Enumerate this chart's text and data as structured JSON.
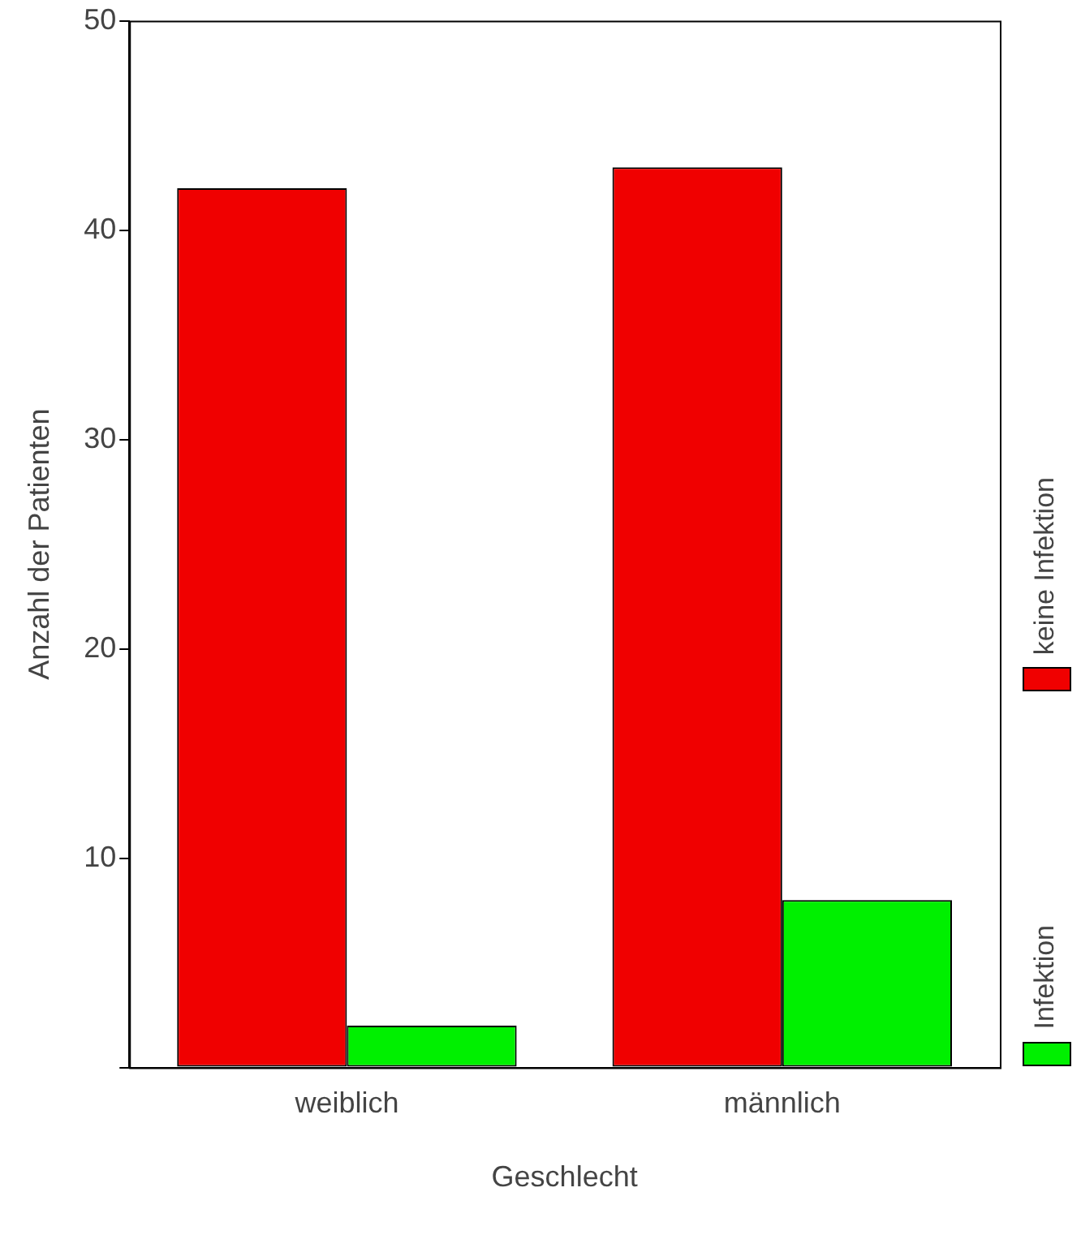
{
  "chart_data": {
    "type": "bar",
    "xlabel": "Geschlecht",
    "ylabel": "Anzahl der Patienten",
    "categories": [
      "weiblich",
      "männlich"
    ],
    "series": [
      {
        "name": "keine Infektion",
        "color": "#f00000",
        "values": [
          42,
          43
        ]
      },
      {
        "name": "Infektion",
        "color": "#00f000",
        "values": [
          2,
          8
        ]
      }
    ],
    "ylim": [
      0,
      50
    ],
    "yticks": [
      {
        "value": 0,
        "label": null
      },
      10,
      20,
      30,
      40,
      50
    ],
    "grid": false,
    "legend": "right"
  }
}
